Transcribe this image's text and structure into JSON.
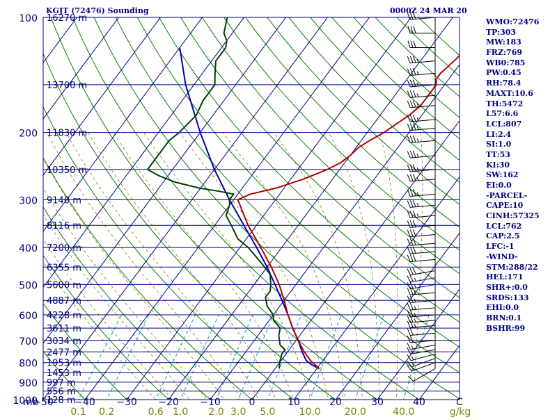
{
  "header": {
    "left": "KGJT (72476) Sounding",
    "right": "0000Z 24 MAR 20"
  },
  "stats": [
    "WMO:72476",
    "TP:303",
    "MW:183",
    "FRZ:769",
    "WB0:785",
    "PW:0.45",
    "RH:78.4",
    "MAXT:10.6",
    "TH:5472",
    "L57:6.6",
    "LCL:807",
    "LI:2.4",
    "SI:1.0",
    "TT:53",
    "KI:30",
    "SW:162",
    "EI:0.0",
    "-PARCEL-",
    "CAPE:10",
    "CINH:57325",
    "LCL:762",
    "CAP:2.5",
    "LFC:-1",
    "-WIND-",
    "STM:288/22",
    "HEL:171",
    "SHR+:0.0",
    "SRDS:133",
    "EHI:0.0",
    "BRN:0.1",
    "BSHR:99"
  ],
  "colors": {
    "frame": "#000080",
    "isobar": "#000080",
    "isotherm": "#000080",
    "dry_adiabat": "#008000",
    "moist_adiabat": "#808000",
    "mixing_ratio": "#00a0d0",
    "temperature": "#b00000",
    "dewpoint": "#004000",
    "parcel": "#0000b0",
    "wind_barb": "#000000",
    "axis_text": "#000080",
    "mixing_text": "#808000"
  },
  "chart_data": {
    "type": "skew-t",
    "pressure_unit_label": "mb",
    "temperature_unit_label": "C",
    "mixing_ratio_unit_label": "g/kg",
    "xlim_c": [
      -50,
      50
    ],
    "ylim_mb": [
      1000,
      100
    ],
    "pressure_ticks": [
      100,
      200,
      300,
      400,
      500,
      600,
      700,
      800,
      900,
      1000
    ],
    "temperature_ticks": [
      -50,
      -40,
      -30,
      -20,
      -10,
      0,
      10,
      20,
      30,
      40
    ],
    "mixing_ratio_ticks": [
      "0.1",
      "0.2",
      "0.6",
      "1.0",
      "2.0",
      "3.0",
      "5.0",
      "10.0",
      "20.0",
      "40.0"
    ],
    "height_labels": [
      {
        "p": 100,
        "text": "16270 m"
      },
      {
        "p": 150,
        "text": "13700 m"
      },
      {
        "p": 200,
        "text": "11830 m"
      },
      {
        "p": 250,
        "text": "10350 m"
      },
      {
        "p": 300,
        "text": "9140 m"
      },
      {
        "p": 350,
        "text": "8116 m"
      },
      {
        "p": 400,
        "text": "7200 m"
      },
      {
        "p": 450,
        "text": "6355 m"
      },
      {
        "p": 500,
        "text": "5600 m"
      },
      {
        "p": 550,
        "text": "4887 m"
      },
      {
        "p": 600,
        "text": "4228 m"
      },
      {
        "p": 650,
        "text": "3611 m"
      },
      {
        "p": 700,
        "text": "3034 m"
      },
      {
        "p": 750,
        "text": "2477 m"
      },
      {
        "p": 800,
        "text": "1953 m"
      },
      {
        "p": 850,
        "text": "1453 m"
      },
      {
        "p": 900,
        "text": "997 m"
      },
      {
        "p": 950,
        "text": "556 m"
      },
      {
        "p": 1000,
        "text": "128 m"
      }
    ],
    "temperature_profile": [
      [
        830,
        10.6
      ],
      [
        790,
        7
      ],
      [
        750,
        4
      ],
      [
        700,
        0.5
      ],
      [
        650,
        -3
      ],
      [
        600,
        -6.5
      ],
      [
        550,
        -10
      ],
      [
        500,
        -14
      ],
      [
        450,
        -19
      ],
      [
        400,
        -25
      ],
      [
        350,
        -32
      ],
      [
        300,
        -39
      ],
      [
        290,
        -37
      ],
      [
        280,
        -32
      ],
      [
        265,
        -27
      ],
      [
        250,
        -23
      ],
      [
        240,
        -21
      ],
      [
        230,
        -20
      ],
      [
        220,
        -19.5
      ],
      [
        210,
        -18
      ],
      [
        200,
        -16
      ],
      [
        180,
        -13
      ],
      [
        170,
        -12
      ],
      [
        160,
        -12
      ],
      [
        150,
        -12
      ],
      [
        145,
        -13
      ],
      [
        140,
        -13
      ],
      [
        135,
        -12.5
      ],
      [
        130,
        -12
      ],
      [
        125,
        -11.5
      ],
      [
        120,
        -12.5
      ],
      [
        115,
        -12
      ],
      [
        110,
        -12
      ],
      [
        105,
        -12
      ],
      [
        100,
        -11
      ]
    ],
    "dewpoint_profile": [
      [
        830,
        1
      ],
      [
        800,
        0
      ],
      [
        760,
        -1
      ],
      [
        740,
        -1
      ],
      [
        720,
        -3
      ],
      [
        700,
        -4
      ],
      [
        680,
        -5
      ],
      [
        650,
        -6
      ],
      [
        620,
        -9
      ],
      [
        600,
        -10
      ],
      [
        570,
        -13
      ],
      [
        540,
        -15
      ],
      [
        520,
        -15
      ],
      [
        500,
        -16
      ],
      [
        470,
        -18
      ],
      [
        440,
        -22
      ],
      [
        400,
        -28
      ],
      [
        380,
        -32
      ],
      [
        350,
        -36
      ],
      [
        330,
        -39
      ],
      [
        310,
        -40
      ],
      [
        300,
        -41
      ],
      [
        290,
        -41
      ],
      [
        285,
        -45
      ],
      [
        280,
        -50
      ],
      [
        270,
        -57
      ],
      [
        260,
        -62
      ],
      [
        250,
        -66
      ],
      [
        240,
        -66
      ],
      [
        230,
        -66
      ],
      [
        220,
        -66
      ],
      [
        210,
        -66
      ],
      [
        200,
        -65
      ],
      [
        180,
        -64
      ],
      [
        165,
        -65
      ],
      [
        150,
        -65
      ],
      [
        140,
        -67
      ],
      [
        130,
        -69
      ],
      [
        120,
        -69
      ],
      [
        115,
        -70
      ],
      [
        110,
        -72
      ],
      [
        105,
        -73
      ],
      [
        100,
        -74
      ]
    ],
    "parcel_profile": [
      [
        830,
        10.6
      ],
      [
        810,
        8
      ],
      [
        790,
        6
      ],
      [
        750,
        3.5
      ],
      [
        700,
        0.5
      ],
      [
        650,
        -3
      ],
      [
        600,
        -6.5
      ],
      [
        550,
        -10.5
      ],
      [
        500,
        -15
      ],
      [
        450,
        -20
      ],
      [
        400,
        -26
      ],
      [
        350,
        -33
      ],
      [
        300,
        -41
      ],
      [
        250,
        -50
      ],
      [
        200,
        -60
      ],
      [
        150,
        -72
      ],
      [
        120,
        -80
      ]
    ],
    "wind_profile": [
      {
        "p": 830,
        "dir": 240,
        "spd": 10
      },
      {
        "p": 800,
        "dir": 250,
        "spd": 15
      },
      {
        "p": 780,
        "dir": 250,
        "spd": 15
      },
      {
        "p": 760,
        "dir": 255,
        "spd": 15
      },
      {
        "p": 740,
        "dir": 260,
        "spd": 15
      },
      {
        "p": 720,
        "dir": 260,
        "spd": 15
      },
      {
        "p": 700,
        "dir": 265,
        "spd": 20
      },
      {
        "p": 670,
        "dir": 265,
        "spd": 20
      },
      {
        "p": 640,
        "dir": 265,
        "spd": 25
      },
      {
        "p": 620,
        "dir": 265,
        "spd": 25
      },
      {
        "p": 600,
        "dir": 265,
        "spd": 25
      },
      {
        "p": 575,
        "dir": 265,
        "spd": 25
      },
      {
        "p": 550,
        "dir": 265,
        "spd": 25
      },
      {
        "p": 525,
        "dir": 265,
        "spd": 25
      },
      {
        "p": 500,
        "dir": 260,
        "spd": 25
      },
      {
        "p": 480,
        "dir": 260,
        "spd": 25
      },
      {
        "p": 460,
        "dir": 260,
        "spd": 30
      },
      {
        "p": 430,
        "dir": 265,
        "spd": 30
      },
      {
        "p": 410,
        "dir": 265,
        "spd": 30
      },
      {
        "p": 390,
        "dir": 265,
        "spd": 30
      },
      {
        "p": 370,
        "dir": 265,
        "spd": 30
      },
      {
        "p": 350,
        "dir": 265,
        "spd": 30
      },
      {
        "p": 330,
        "dir": 265,
        "spd": 35
      },
      {
        "p": 310,
        "dir": 265,
        "spd": 35
      },
      {
        "p": 290,
        "dir": 265,
        "spd": 35
      },
      {
        "p": 265,
        "dir": 265,
        "spd": 35
      },
      {
        "p": 250,
        "dir": 265,
        "spd": 35
      },
      {
        "p": 230,
        "dir": 265,
        "spd": 35
      },
      {
        "p": 210,
        "dir": 265,
        "spd": 35
      },
      {
        "p": 195,
        "dir": 265,
        "spd": 35
      },
      {
        "p": 185,
        "dir": 265,
        "spd": 35
      },
      {
        "p": 170,
        "dir": 265,
        "spd": 35
      },
      {
        "p": 160,
        "dir": 265,
        "spd": 35
      },
      {
        "p": 150,
        "dir": 265,
        "spd": 35
      },
      {
        "p": 140,
        "dir": 265,
        "spd": 35
      },
      {
        "p": 130,
        "dir": 265,
        "spd": 35
      },
      {
        "p": 120,
        "dir": 270,
        "spd": 30
      },
      {
        "p": 110,
        "dir": 270,
        "spd": 30
      },
      {
        "p": 100,
        "dir": 265,
        "spd": 30
      }
    ]
  }
}
